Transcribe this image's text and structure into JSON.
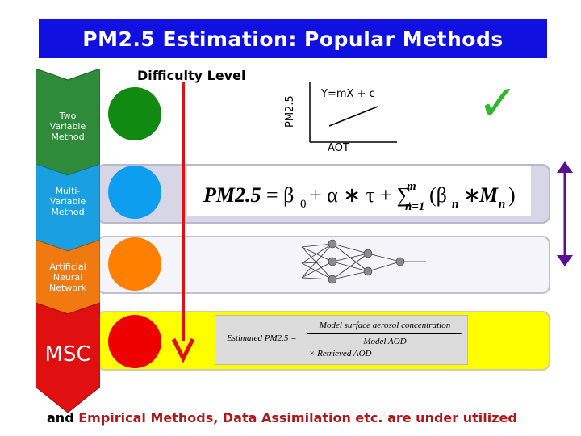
{
  "title": "PM2.5 Estimation: Popular Methods",
  "difficulty_label": "Difficulty Level",
  "methods": [
    {
      "label_lines": [
        "Two",
        "Variable",
        "Method"
      ],
      "color": "#2e8b3a",
      "circle_color": "#118a11"
    },
    {
      "label_lines": [
        "Multi-",
        "Variable",
        "Method"
      ],
      "color": "#1aa0e0",
      "circle_color": "#0e9ef0"
    },
    {
      "label_lines": [
        "Artificial",
        "Neural",
        "Network"
      ],
      "color": "#f07a10",
      "circle_color": "#ff8000"
    },
    {
      "label_lines": [
        "MSC"
      ],
      "color": "#e01010",
      "circle_color": "#ee0000"
    }
  ],
  "mini_plot": {
    "ylabel": "PM2.5",
    "xlabel": "AOT",
    "equation": "Y=mX + c"
  },
  "check_mark": "✓",
  "formula_mlr": "PM2.5 = β0 + α ∗ τ + ∑n=1m(βn ∗ Mn)",
  "formula_msc": {
    "lhs": "Estimated PM2.5 =",
    "numerator": "Model surface aerosol concentration",
    "denominator": "Model AOD",
    "tail": "× Retrieved AOD"
  },
  "bottom_note": {
    "lead": "and ",
    "rest": "Empirical Methods, Data Assimilation etc. are under utilized"
  },
  "colors": {
    "title_bg": "#1010e0",
    "arrow_red": "#e01010",
    "row_yellow": "#ffff00",
    "row_gray": "#c8c8dc"
  }
}
